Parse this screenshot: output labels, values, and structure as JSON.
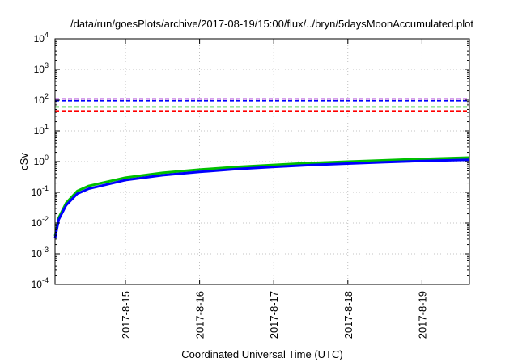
{
  "chart_data": {
    "type": "line",
    "title": "/data/run/goesPlots/archive/2017-08-19/15:00/flux/../bryn/5daysMoonAccumulated.plot",
    "xlabel": "Coordinated Universal Time (UTC)",
    "ylabel": "cSv",
    "yscale": "log",
    "ylim": [
      0.0001,
      10000
    ],
    "xlim": [
      14.05,
      19.64
    ],
    "x_unit": "day of 2017-08",
    "y_ticks": [
      {
        "value": 0.0001,
        "base": "10",
        "exp": "-4"
      },
      {
        "value": 0.001,
        "base": "10",
        "exp": "-3"
      },
      {
        "value": 0.01,
        "base": "10",
        "exp": "-2"
      },
      {
        "value": 0.1,
        "base": "10",
        "exp": "-1"
      },
      {
        "value": 1,
        "base": "10",
        "exp": "0"
      },
      {
        "value": 10,
        "base": "10",
        "exp": "1"
      },
      {
        "value": 100,
        "base": "10",
        "exp": "2"
      },
      {
        "value": 1000,
        "base": "10",
        "exp": "3"
      },
      {
        "value": 10000,
        "base": "10",
        "exp": "4"
      }
    ],
    "x_ticks": [
      {
        "value": 15,
        "label": "2017-8-15"
      },
      {
        "value": 16,
        "label": "2017-8-16"
      },
      {
        "value": 17,
        "label": "2017-8-17"
      },
      {
        "value": 18,
        "label": "2017-8-18"
      },
      {
        "value": 19,
        "label": "2017-8-19"
      }
    ],
    "grid": true,
    "thresholds": [
      {
        "value": 110,
        "color": "#9400d3"
      },
      {
        "value": 95,
        "color": "#0000ff"
      },
      {
        "value": 60,
        "color": "#00c000"
      },
      {
        "value": 45,
        "color": "#ff0000"
      }
    ],
    "series": [
      {
        "color": "#00c000",
        "x": [
          14.05,
          14.1,
          14.2,
          14.35,
          14.5,
          15.0,
          15.5,
          16.0,
          16.5,
          17.0,
          17.5,
          18.0,
          18.5,
          19.0,
          19.64
        ],
        "y": [
          0.0038,
          0.015,
          0.045,
          0.11,
          0.16,
          0.3,
          0.43,
          0.55,
          0.67,
          0.78,
          0.9,
          1.0,
          1.1,
          1.22,
          1.35
        ]
      },
      {
        "color": "#0000ff",
        "x": [
          14.05,
          14.1,
          14.2,
          14.35,
          14.5,
          15.0,
          15.5,
          16.0,
          16.5,
          17.0,
          17.5,
          18.0,
          18.5,
          19.0,
          19.64
        ],
        "y": [
          0.0032,
          0.013,
          0.038,
          0.09,
          0.13,
          0.25,
          0.36,
          0.46,
          0.57,
          0.67,
          0.77,
          0.86,
          0.95,
          1.05,
          1.15
        ]
      }
    ]
  }
}
